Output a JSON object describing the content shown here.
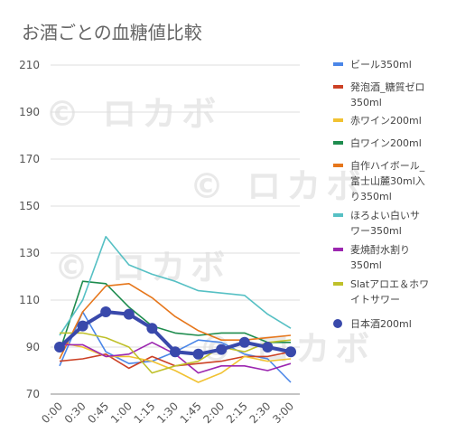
{
  "chart_data": {
    "type": "line",
    "title": "お酒ごとの血糖値比較",
    "xlabel": "",
    "ylabel": "",
    "ylim": [
      70,
      210
    ],
    "yticks": [
      70,
      90,
      110,
      130,
      150,
      170,
      190,
      210
    ],
    "x": [
      "0:00",
      "0:30",
      "0:45",
      "1:00",
      "1:15",
      "1:30",
      "1:45",
      "2:00",
      "2:15",
      "2:30",
      "3:00"
    ],
    "grid": true,
    "legend_position": "right",
    "series": [
      {
        "name": "ビール350ml",
        "legend_lines": [
          "ビール350ml"
        ],
        "color": "#4a86e8",
        "values": [
          82,
          105,
          88,
          83,
          84,
          88,
          93,
          92,
          87,
          85,
          75
        ]
      },
      {
        "name": "発泡酒_糖質ゼロ350ml",
        "legend_lines": [
          "発泡酒_糖質ゼロ",
          "350ml"
        ],
        "color": "#cc4125",
        "values": [
          84,
          85,
          87,
          81,
          86,
          82,
          83,
          84,
          86,
          86,
          88
        ]
      },
      {
        "name": "赤ワイン200ml",
        "legend_lines": [
          "赤ワイン200ml"
        ],
        "color": "#f1c232",
        "values": [
          92,
          90,
          86,
          86,
          84,
          80,
          75,
          79,
          86,
          84,
          85
        ]
      },
      {
        "name": "白ワイン200ml",
        "legend_lines": [
          "白ワイン200ml"
        ],
        "color": "#1e8c4e",
        "values": [
          88,
          118,
          117,
          107,
          99,
          96,
          95,
          96,
          96,
          92,
          92
        ]
      },
      {
        "name": "自作ハイボール_富士山麓30ml入り350ml",
        "legend_lines": [
          "自作ハイボール_",
          "富士山麓30ml入",
          "り350ml"
        ],
        "color": "#e6761b",
        "values": [
          85,
          105,
          116,
          117,
          111,
          103,
          97,
          93,
          93,
          94,
          95
        ]
      },
      {
        "name": "ほろよい白いサワー350ml",
        "legend_lines": [
          "ほろよい白いサ",
          "ワー350ml"
        ],
        "color": "#56c0c4",
        "values": [
          95,
          110,
          137,
          125,
          121,
          118,
          114,
          113,
          112,
          104,
          98
        ]
      },
      {
        "name": "麦焼酎水割り350ml",
        "legend_lines": [
          "麦焼酎水割り",
          "350ml"
        ],
        "color": "#9c27b0",
        "values": [
          91,
          91,
          86,
          87,
          92,
          87,
          79,
          82,
          82,
          80,
          83
        ]
      },
      {
        "name": "Slatアロエ＆ホワイトサワー",
        "legend_lines": [
          "Slatアロエ＆ホワ",
          "イトサワー"
        ],
        "color": "#bfc02a",
        "values": [
          96,
          96,
          94,
          90,
          79,
          82,
          84,
          90,
          88,
          92,
          93
        ]
      },
      {
        "name": "日本酒200ml",
        "legend_lines": [
          "日本酒200ml"
        ],
        "color": "#3949ab",
        "marker": "circle",
        "values": [
          90,
          99,
          105,
          104,
          98,
          88,
          87,
          89,
          92,
          90,
          88
        ]
      }
    ]
  }
}
